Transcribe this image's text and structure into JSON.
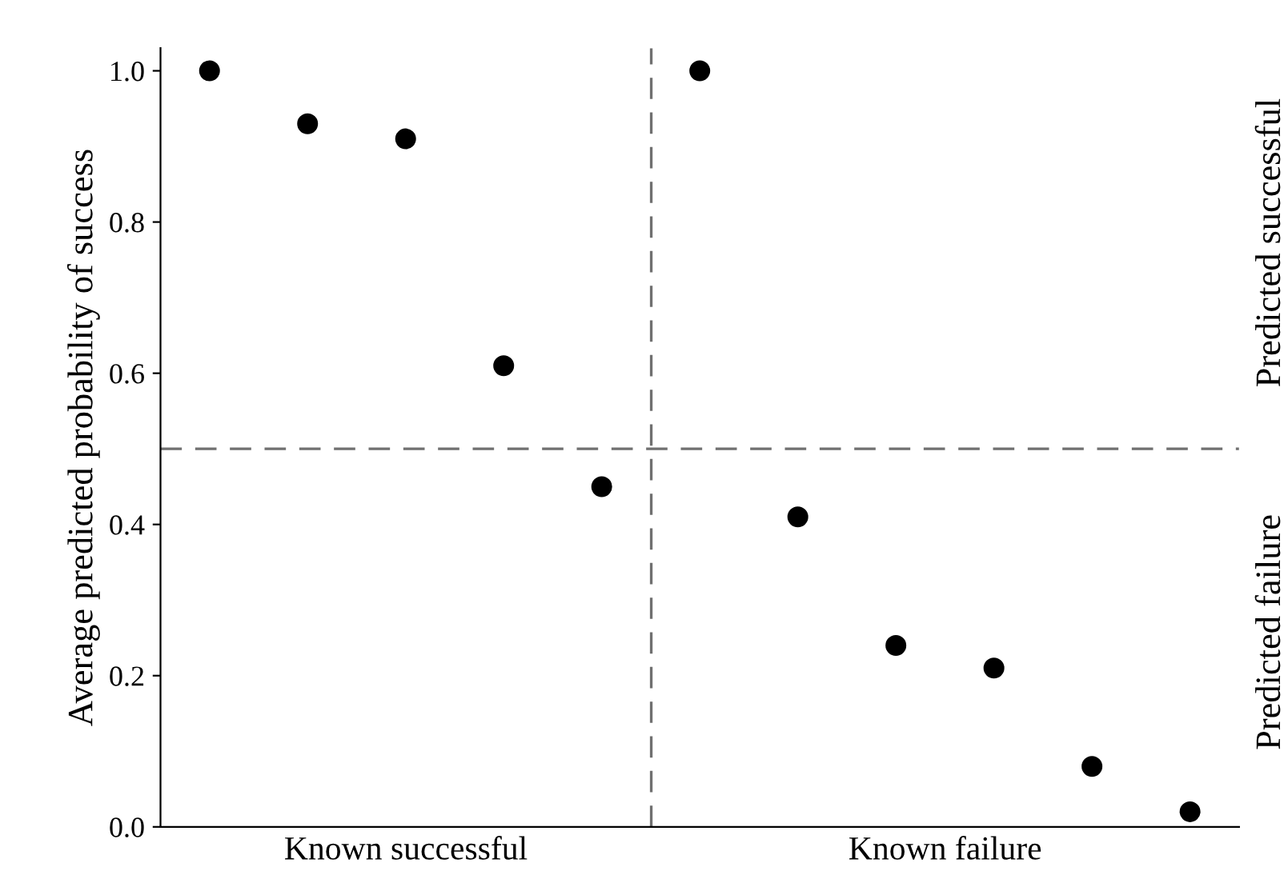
{
  "chart_data": {
    "type": "scatter",
    "ylabel": "Average predicted probability of success",
    "categories": [
      null,
      null,
      null,
      null,
      null,
      null,
      null,
      null,
      null,
      null,
      null
    ],
    "series": [
      {
        "color": "#000000",
        "values": [
          1.0,
          0.93,
          0.91,
          0.61,
          0.45,
          1.0,
          0.41,
          0.24,
          0.21,
          0.08,
          0.02
        ]
      }
    ],
    "ylim": [
      0,
      1.03
    ],
    "yticks": [
      {
        "value": 0,
        "label": "0.0"
      },
      {
        "value": 0.2,
        "label": "0.2"
      },
      {
        "value": 0.4,
        "label": "0.4"
      },
      {
        "value": 0.6,
        "label": "0.6"
      },
      {
        "value": 0.8,
        "label": "0.8"
      },
      {
        "value": 1.0,
        "label": "1.0"
      }
    ],
    "ref_lines": [
      {
        "axis": "y",
        "value": 0.5,
        "line_style": "dashed",
        "color": "#707070"
      }
    ],
    "annotations": [
      "Known successful",
      "Known failure",
      "Predicted successful",
      "Predicted failure"
    ],
    "marker": "circle",
    "grid": false
  }
}
